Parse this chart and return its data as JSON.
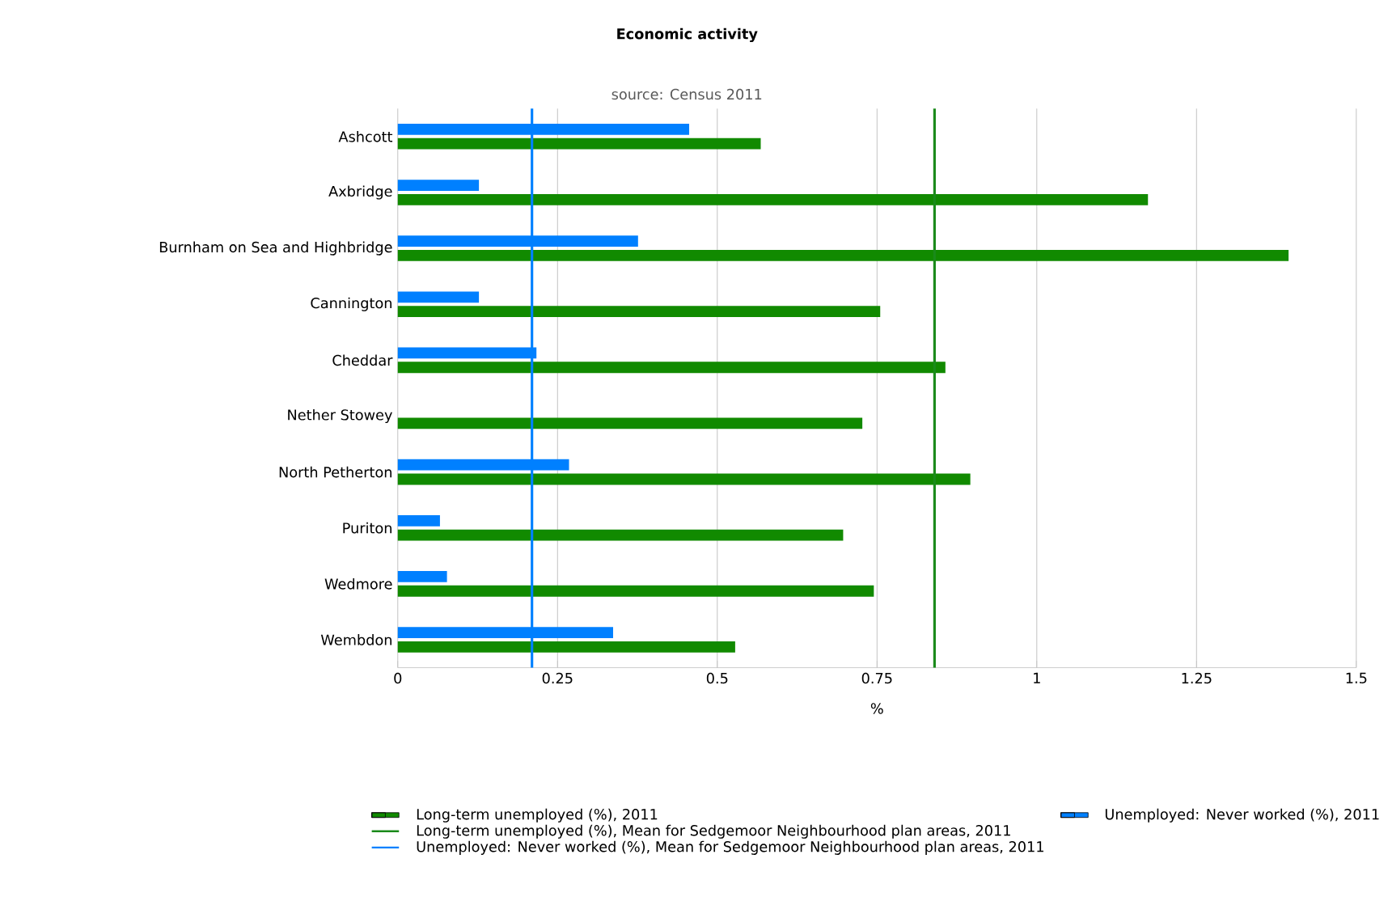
{
  "chart_data": {
    "type": "bar",
    "orientation": "horizontal",
    "title": "Economic activity",
    "subtitle": "source: Census 2011",
    "xlabel": "%",
    "categories": [
      "Ashcott",
      "Axbridge",
      "Burnham on Sea and Highbridge",
      "Cannington",
      "Cheddar",
      "Nether Stowey",
      "North Petherton",
      "Puriton",
      "Wedmore",
      "Wembdon"
    ],
    "series": [
      {
        "name": "Long-term unemployed (%), 2011",
        "color": "#118a00",
        "values": [
          0.568,
          1.174,
          1.394,
          0.755,
          0.857,
          0.727,
          0.896,
          0.697,
          0.745,
          0.528
        ]
      },
      {
        "name": "Unemployed: Never worked (%), 2011",
        "color": "#0080ff",
        "values": [
          0.456,
          0.127,
          0.376,
          0.127,
          0.217,
          null,
          0.268,
          0.066,
          0.077,
          0.337
        ]
      }
    ],
    "ref_lines": [
      {
        "axis": "x",
        "value": 0.84,
        "label": "Long-term unemployed (%), Mean for Sedgemoor Neighbourhood plan areas, 2011",
        "color": "#1a8a1a"
      },
      {
        "axis": "x",
        "value": 0.21,
        "label": "Unemployed: Never worked (%), Mean for Sedgemoor Neighbourhood plan areas, 2011",
        "color": "#0080ff"
      }
    ],
    "xlim": [
      0,
      1.5
    ],
    "xticks": [
      0,
      0.25,
      0.5,
      0.75,
      1,
      1.25,
      1.5
    ],
    "grid": "x",
    "legend": "bottom"
  }
}
